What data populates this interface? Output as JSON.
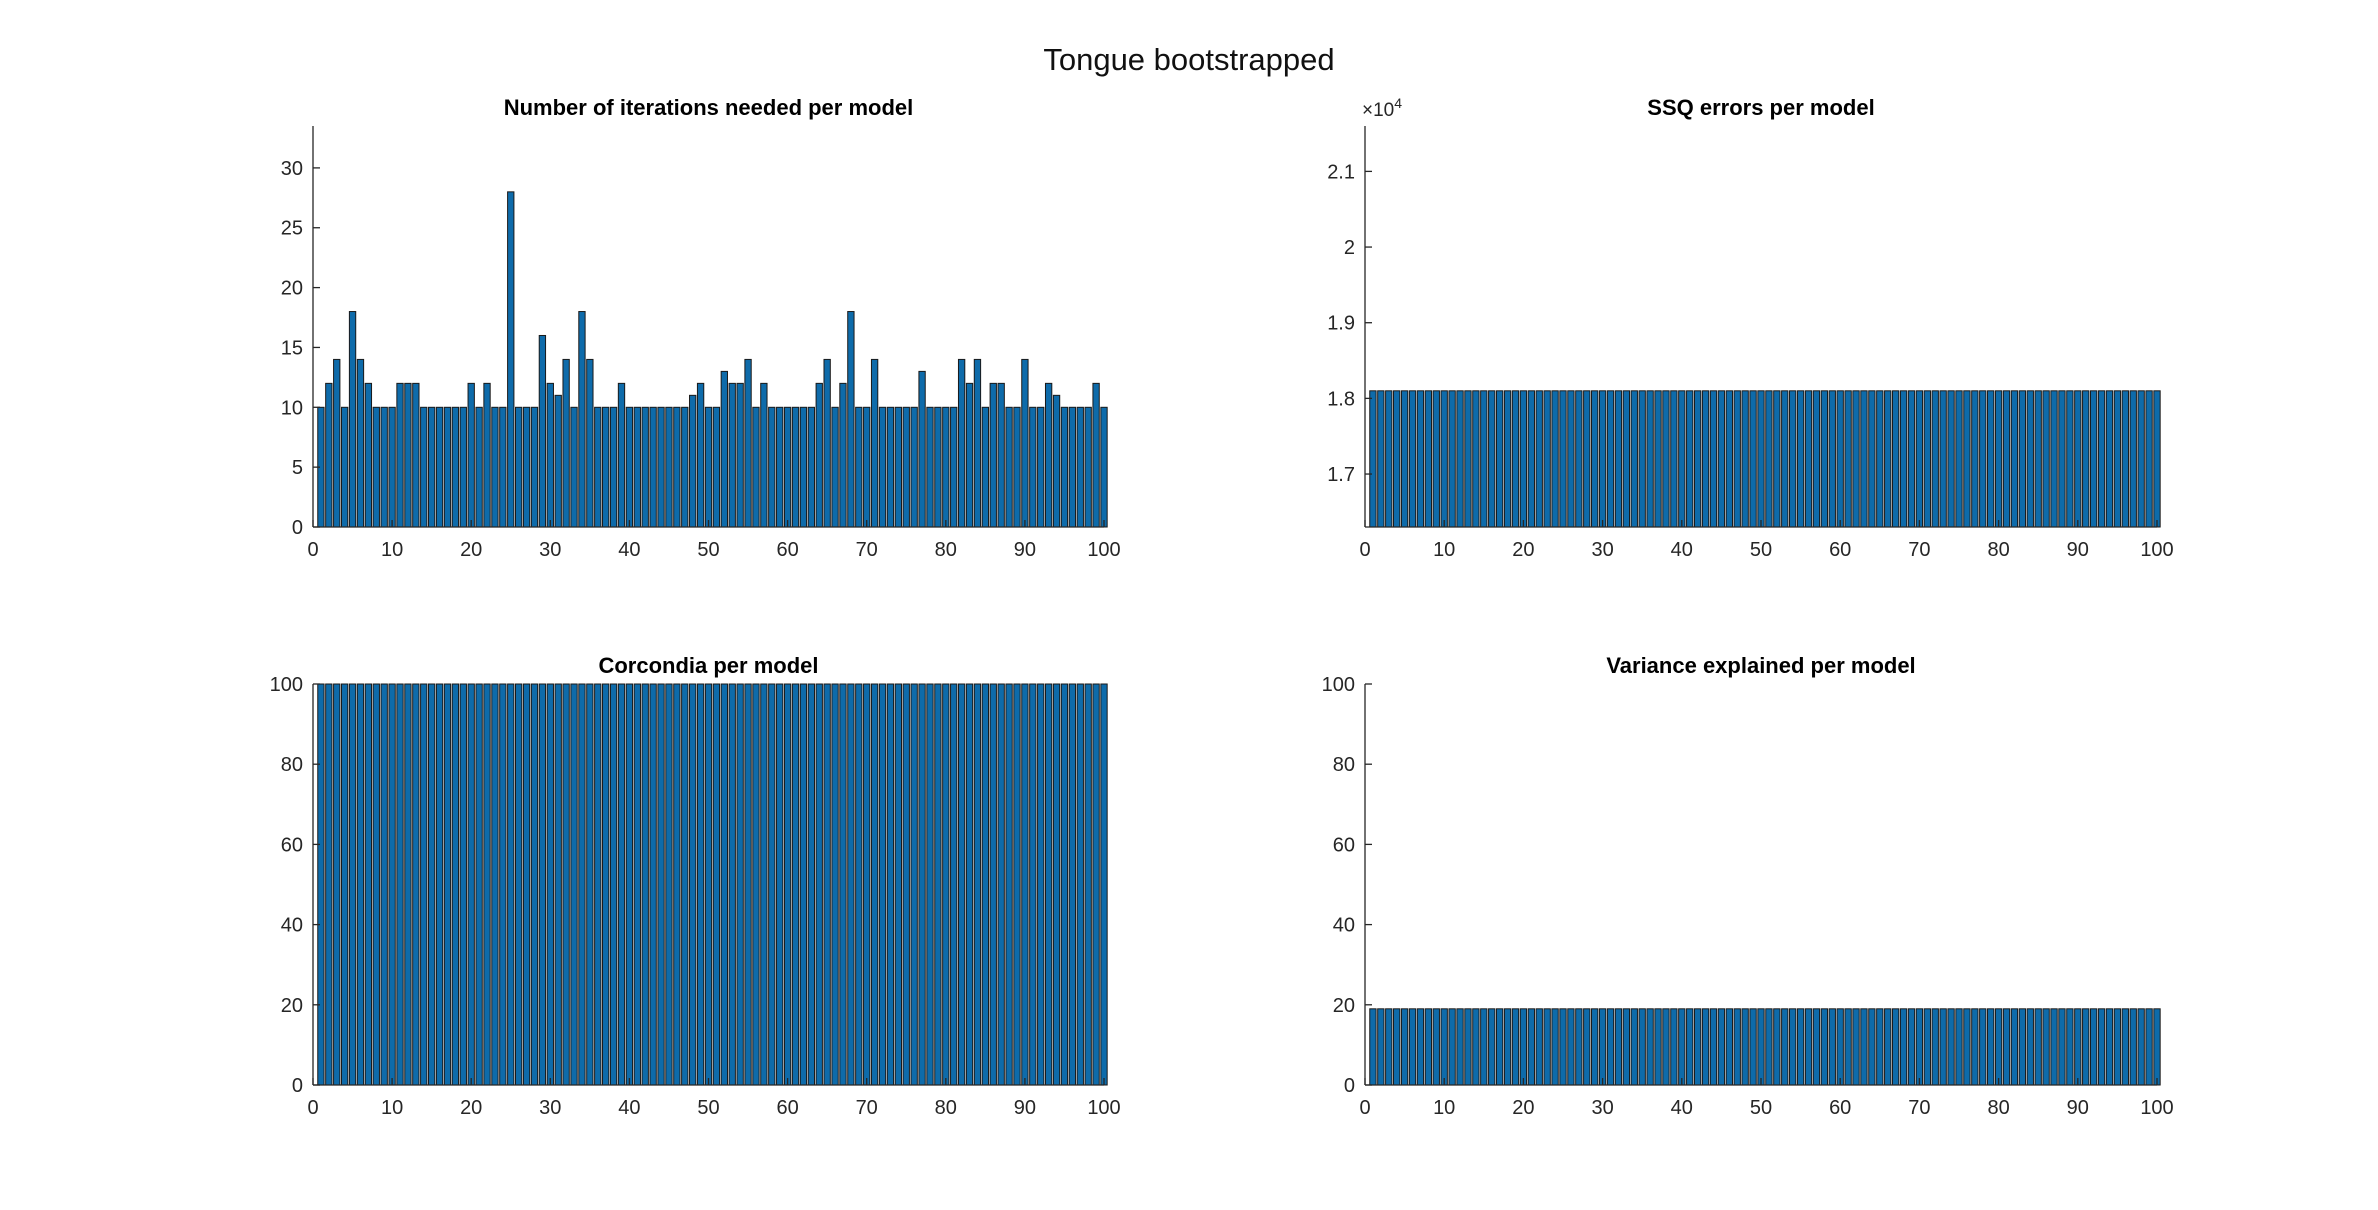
{
  "figure": {
    "title": "Tongue bootstrapped"
  },
  "chart_data": [
    {
      "type": "bar",
      "title": "Number of iterations needed per model",
      "xlabel": "",
      "ylabel": "",
      "xlim": [
        0,
        100
      ],
      "ylim": [
        0,
        33.5
      ],
      "xticks": [
        0,
        10,
        20,
        30,
        40,
        50,
        60,
        70,
        80,
        90,
        100
      ],
      "yticks": [
        0,
        5,
        10,
        15,
        20,
        25,
        30
      ],
      "grid": false,
      "color": "#0E6BAA",
      "x_start": 1,
      "values": [
        10,
        12,
        14,
        10,
        18,
        14,
        12,
        10,
        10,
        10,
        12,
        12,
        12,
        10,
        10,
        10,
        10,
        10,
        10,
        12,
        10,
        12,
        10,
        10,
        28,
        10,
        10,
        10,
        16,
        12,
        11,
        14,
        10,
        18,
        14,
        10,
        10,
        10,
        12,
        10,
        10,
        10,
        10,
        10,
        10,
        10,
        10,
        11,
        12,
        10,
        10,
        13,
        12,
        12,
        14,
        10,
        12,
        10,
        10,
        10,
        10,
        10,
        10,
        12,
        14,
        10,
        12,
        18,
        10,
        10,
        14,
        10,
        10,
        10,
        10,
        10,
        13,
        10,
        10,
        10,
        10,
        14,
        12,
        14,
        10,
        12,
        12,
        10,
        10,
        14,
        10,
        10,
        12,
        11,
        10,
        10,
        10,
        10,
        12,
        10
      ]
    },
    {
      "type": "bar",
      "title": "SSQ errors per model",
      "xlabel": "",
      "ylabel": "",
      "xlim": [
        0,
        100
      ],
      "ylim": [
        1.63,
        2.16
      ],
      "xticks": [
        0,
        10,
        20,
        30,
        40,
        50,
        60,
        70,
        80,
        90,
        100
      ],
      "yticks": [
        1.7,
        1.8,
        1.9,
        2,
        2.1
      ],
      "ytick_labels": [
        "1.7",
        "1.8",
        "1.9",
        "2",
        "2.1"
      ],
      "y_exponent_label": "×10",
      "y_exponent": "4",
      "grid": false,
      "color": "#0E6BAA",
      "x_start": 1,
      "constant_value": 1.81,
      "count": 100
    },
    {
      "type": "bar",
      "title": "Corcondia per model",
      "xlabel": "",
      "ylabel": "",
      "xlim": [
        0,
        100
      ],
      "ylim": [
        0,
        100
      ],
      "xticks": [
        0,
        10,
        20,
        30,
        40,
        50,
        60,
        70,
        80,
        90,
        100
      ],
      "yticks": [
        0,
        20,
        40,
        60,
        80,
        100
      ],
      "grid": false,
      "color": "#0E6BAA",
      "x_start": 1,
      "constant_value": 100,
      "count": 100
    },
    {
      "type": "bar",
      "title": "Variance explained per model",
      "xlabel": "",
      "ylabel": "",
      "xlim": [
        0,
        100
      ],
      "ylim": [
        0,
        100
      ],
      "xticks": [
        0,
        10,
        20,
        30,
        40,
        50,
        60,
        70,
        80,
        90,
        100
      ],
      "yticks": [
        0,
        20,
        40,
        60,
        80,
        100
      ],
      "grid": false,
      "color": "#0E6BAA",
      "x_start": 1,
      "constant_value": 19,
      "count": 100
    }
  ]
}
